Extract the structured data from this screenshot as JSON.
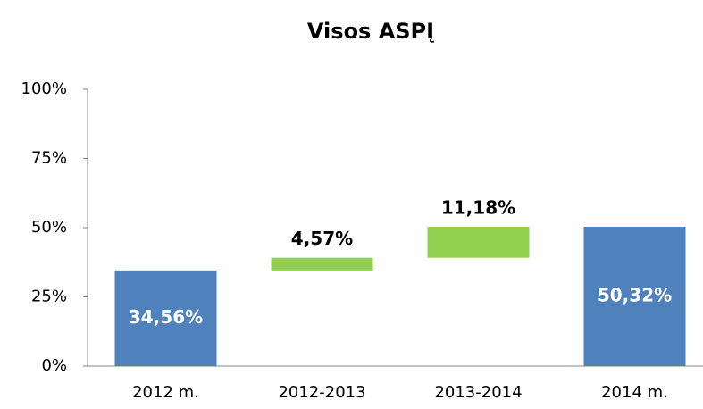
{
  "chart_data": {
    "type": "waterfall",
    "title": "Visos ASPĮ",
    "categories": [
      "2012 m.",
      "2012-2013",
      "2013-2014",
      "2014 m."
    ],
    "values": [
      34.56,
      4.57,
      11.18,
      50.32
    ],
    "value_labels": [
      "34,56%",
      "4,57%",
      "11,18%",
      "50,32%"
    ],
    "measures": [
      "total",
      "relative",
      "relative",
      "total"
    ],
    "total_color": "#4f81bd",
    "increase_color": "#92d050",
    "ylim": [
      0,
      100
    ],
    "yticks": [
      {
        "value": 0,
        "label": "0%"
      },
      {
        "value": 25,
        "label": "25%"
      },
      {
        "value": 50,
        "label": "50%"
      },
      {
        "value": 75,
        "label": "75%"
      },
      {
        "value": 100,
        "label": "100%"
      }
    ],
    "grid": false
  }
}
